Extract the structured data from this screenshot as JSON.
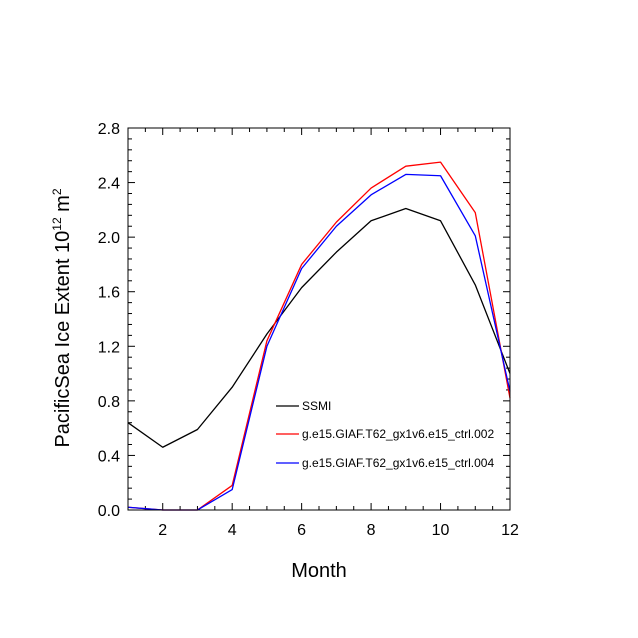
{
  "chart_data": {
    "type": "line",
    "title": "",
    "xlabel": "Month",
    "ylabel": {
      "main": "PacificSea Ice Extent 10",
      "exponent": "12",
      "unit": " m",
      "unit_exponent": "2"
    },
    "xlim": [
      1,
      12
    ],
    "ylim": [
      0.0,
      2.8
    ],
    "x_ticks": [
      2,
      4,
      6,
      8,
      10,
      12
    ],
    "x_tick_labels": [
      "2",
      "4",
      "6",
      "8",
      "10",
      "12"
    ],
    "y_ticks": [
      0.0,
      0.4,
      0.8,
      1.2,
      1.6,
      2.0,
      2.4,
      2.8
    ],
    "y_tick_labels": [
      "0.0",
      "0.4",
      "0.8",
      "1.2",
      "1.6",
      "2.0",
      "2.4",
      "2.8"
    ],
    "grid": false,
    "legend_position": "bottom-right inside",
    "x": [
      1,
      2,
      3,
      4,
      5,
      6,
      7,
      8,
      9,
      10,
      11,
      12
    ],
    "series": [
      {
        "name": "SSMI",
        "color": "#000000",
        "values": [
          0.64,
          0.46,
          0.59,
          0.9,
          1.29,
          1.63,
          1.89,
          2.12,
          2.21,
          2.12,
          1.65,
          1.0
        ]
      },
      {
        "name": "g.e15.GIAF.T62_gx1v6.e15_ctrl.002",
        "color": "#ff0000",
        "values": [
          0.02,
          0.0,
          0.0,
          0.18,
          1.24,
          1.8,
          2.11,
          2.36,
          2.52,
          2.55,
          2.18,
          0.82
        ]
      },
      {
        "name": "g.e15.GIAF.T62_gx1v6.e15_ctrl.004",
        "color": "#0000ff",
        "values": [
          0.02,
          0.0,
          0.0,
          0.15,
          1.2,
          1.77,
          2.08,
          2.31,
          2.46,
          2.45,
          2.01,
          0.87
        ]
      }
    ]
  }
}
